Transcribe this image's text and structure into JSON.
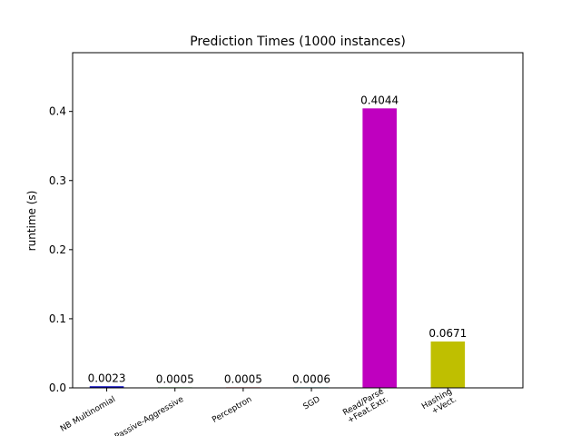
{
  "chart_data": {
    "type": "bar",
    "title": "Prediction Times (1000 instances)",
    "xlabel": "",
    "ylabel": "runtime (s)",
    "categories": [
      [
        "NB Multinomial"
      ],
      [
        "Passive-Aggressive"
      ],
      [
        "Perceptron"
      ],
      [
        "SGD"
      ],
      [
        "Read/Parse",
        "+Feat.Extr."
      ],
      [
        "Hashing",
        "+Vect."
      ]
    ],
    "values": [
      0.0023,
      0.0005,
      0.0005,
      0.0006,
      0.4044,
      0.0671
    ],
    "value_labels": [
      "0.0023",
      "0.0005",
      "0.0005",
      "0.0006",
      "0.4044",
      "0.0671"
    ],
    "colors": [
      "#0000bf",
      "#00bf00",
      "#ff0000",
      "#00bfbf",
      "#bf00bf",
      "#bfbf00"
    ],
    "ylim": [
      0,
      0.485
    ],
    "yticks": [
      0.0,
      0.1,
      0.2,
      0.3,
      0.4
    ],
    "ytick_labels": [
      "0.0",
      "0.1",
      "0.2",
      "0.3",
      "0.4"
    ],
    "xtick_rotation_deg": 30,
    "grid": false,
    "legend": "none"
  }
}
